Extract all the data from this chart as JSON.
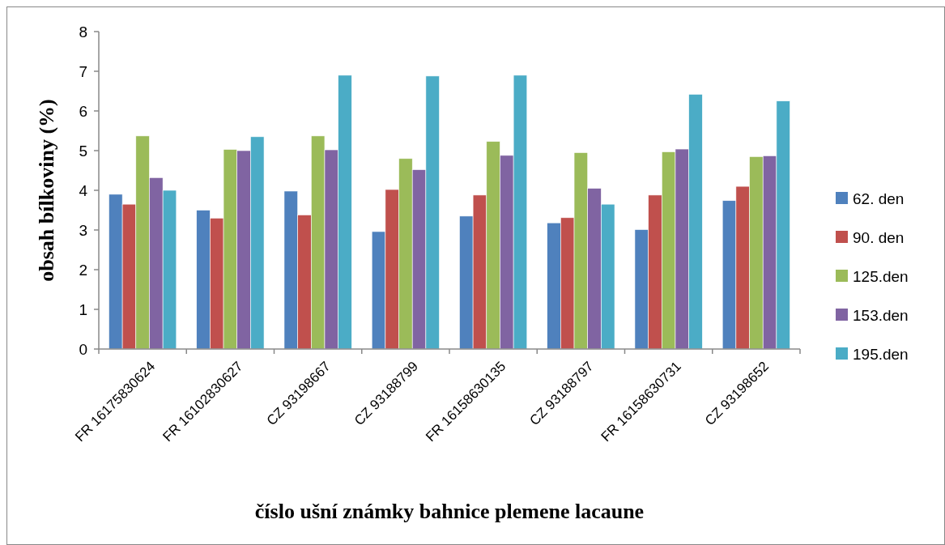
{
  "chart_data": {
    "type": "bar",
    "xlabel": "číslo ušní známky bahnice plemene lacaune",
    "ylabel": "obsah bílkoviny (%)",
    "categories": [
      "FR 16175830624",
      "FR 16102830627",
      "CZ 93198667",
      "CZ 93188799",
      "FR 16158630135",
      "CZ 93188797",
      "FR 16158630731",
      "CZ 93198652"
    ],
    "series": [
      {
        "name": "62. den",
        "color": "#4f81bd",
        "values": [
          3.9,
          3.5,
          3.98,
          2.96,
          3.35,
          3.18,
          3.01,
          3.74
        ]
      },
      {
        "name": "90. den",
        "color": "#c0504d",
        "values": [
          3.65,
          3.3,
          3.38,
          4.02,
          3.88,
          3.31,
          3.88,
          4.1
        ]
      },
      {
        "name": "125.den",
        "color": "#9bbb59",
        "values": [
          5.37,
          5.03,
          5.37,
          4.8,
          5.23,
          4.95,
          4.97,
          4.85
        ]
      },
      {
        "name": "153.den",
        "color": "#8064a2",
        "values": [
          4.32,
          5.0,
          5.02,
          4.52,
          4.88,
          4.05,
          5.04,
          4.87
        ]
      },
      {
        "name": "195.den",
        "color": "#4bacc6",
        "values": [
          4.0,
          5.35,
          6.9,
          6.88,
          6.9,
          3.65,
          6.42,
          6.25
        ]
      }
    ],
    "ylim": [
      0,
      8
    ],
    "yticks": [
      0,
      1,
      2,
      3,
      4,
      5,
      6,
      7,
      8
    ],
    "grid": false,
    "legend": "right"
  }
}
